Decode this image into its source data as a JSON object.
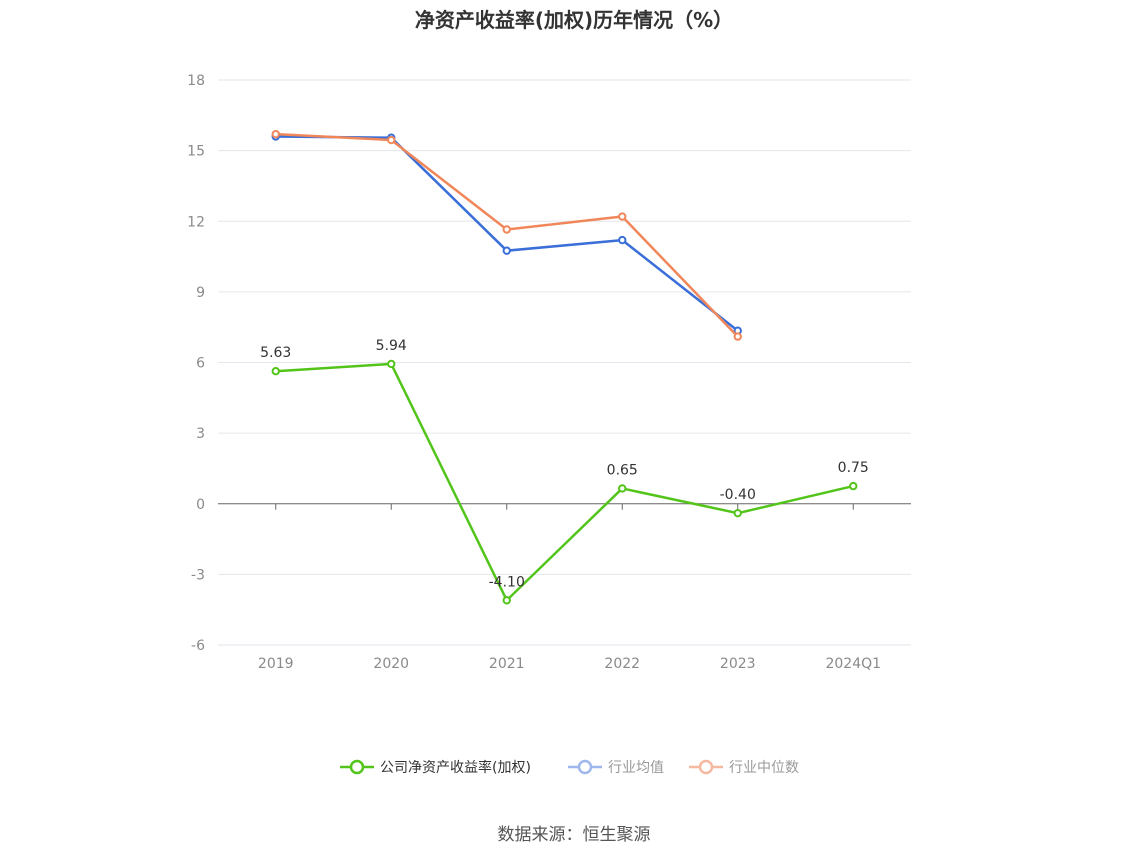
{
  "chart_data": {
    "type": "line",
    "title": "净资产收益率(加权)历年情况（%）",
    "categories": [
      "2019",
      "2020",
      "2021",
      "2022",
      "2023",
      "2024Q1"
    ],
    "ylim": [
      -6,
      18
    ],
    "yticks": [
      18,
      15,
      12,
      9,
      6,
      3,
      0,
      -3,
      -6
    ],
    "grid": true,
    "legend_position": "bottom",
    "series": [
      {
        "name": "公司净资产收益率(加权)",
        "color": "#52c41a",
        "values": [
          5.63,
          5.94,
          -4.1,
          0.65,
          -0.4,
          0.75
        ],
        "labels": [
          "5.63",
          "5.94",
          "-4.10",
          "0.65",
          "-0.40",
          "0.75"
        ]
      },
      {
        "name": "行业均值",
        "color": "#3a6fd8",
        "values": [
          15.6,
          15.55,
          10.75,
          11.2,
          7.35,
          null
        ]
      },
      {
        "name": "行业中位数",
        "color": "#f0875a",
        "values": [
          15.7,
          15.45,
          11.65,
          12.2,
          7.1,
          null
        ]
      }
    ],
    "source": "数据来源：恒生聚源"
  }
}
